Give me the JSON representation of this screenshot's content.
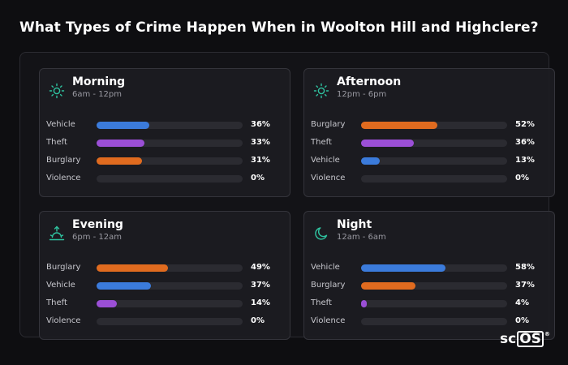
{
  "title": "What Types of Crime Happen When in Woolton Hill and Highclere?",
  "logo": {
    "text_sc": "sc",
    "text_os": "OS",
    "mark": "®"
  },
  "colors": {
    "Vehicle": "#3b7bdb",
    "Theft": "#9b4fd6",
    "Burglary": "#e06b1f",
    "Violence": "#6b6b73",
    "icon": "#2fc3a0"
  },
  "chart_data": [
    {
      "type": "bar",
      "title": "Morning",
      "subtitle": "6am - 12pm",
      "icon": "sun-icon",
      "categories": [
        "Vehicle",
        "Theft",
        "Burglary",
        "Violence"
      ],
      "values": [
        36,
        33,
        31,
        0
      ],
      "labels": [
        "36%",
        "33%",
        "31%",
        "0%"
      ],
      "ylim": [
        0,
        100
      ]
    },
    {
      "type": "bar",
      "title": "Afternoon",
      "subtitle": "12pm - 6pm",
      "icon": "sun-icon",
      "categories": [
        "Burglary",
        "Theft",
        "Vehicle",
        "Violence"
      ],
      "values": [
        52,
        36,
        13,
        0
      ],
      "labels": [
        "52%",
        "36%",
        "13%",
        "0%"
      ],
      "ylim": [
        0,
        100
      ]
    },
    {
      "type": "bar",
      "title": "Evening",
      "subtitle": "6pm - 12am",
      "icon": "sunset-icon",
      "categories": [
        "Burglary",
        "Vehicle",
        "Theft",
        "Violence"
      ],
      "values": [
        49,
        37,
        14,
        0
      ],
      "labels": [
        "49%",
        "37%",
        "14%",
        "0%"
      ],
      "ylim": [
        0,
        100
      ]
    },
    {
      "type": "bar",
      "title": "Night",
      "subtitle": "12am - 6am",
      "icon": "moon-icon",
      "categories": [
        "Vehicle",
        "Burglary",
        "Theft",
        "Violence"
      ],
      "values": [
        58,
        37,
        4,
        0
      ],
      "labels": [
        "58%",
        "37%",
        "4%",
        "0%"
      ],
      "ylim": [
        0,
        100
      ]
    }
  ]
}
